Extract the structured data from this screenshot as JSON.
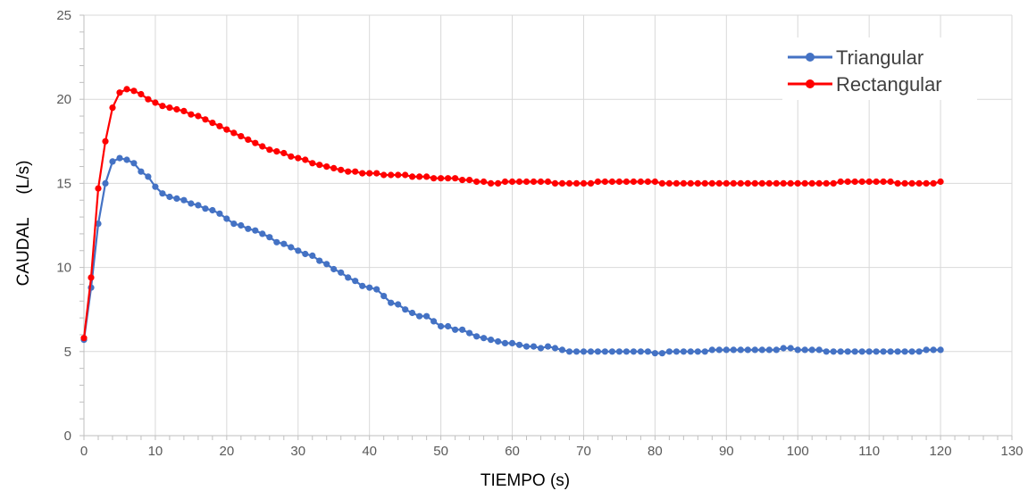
{
  "chart_data": {
    "type": "line",
    "xlabel": "TIEMPO (s)",
    "ylabel": "CAUDAL     (L/s)",
    "xlim": [
      0,
      130
    ],
    "ylim": [
      0,
      25
    ],
    "xticks": [
      "0",
      "10",
      "20",
      "30",
      "40",
      "50",
      "60",
      "70",
      "80",
      "90",
      "100",
      "110",
      "120",
      "130"
    ],
    "yticks": [
      "0",
      "5",
      "10",
      "15",
      "20",
      "25"
    ],
    "grid": "vertical",
    "legend_position": "top-right",
    "series": [
      {
        "name": "Triangular",
        "color": "#4472C4",
        "x": [
          0,
          1,
          2,
          3,
          4,
          5,
          6,
          7,
          8,
          9,
          10,
          11,
          12,
          13,
          14,
          15,
          16,
          17,
          18,
          19,
          20,
          21,
          22,
          23,
          24,
          25,
          26,
          27,
          28,
          29,
          30,
          31,
          32,
          33,
          34,
          35,
          36,
          37,
          38,
          39,
          40,
          41,
          42,
          43,
          44,
          45,
          46,
          47,
          48,
          49,
          50,
          51,
          52,
          53,
          54,
          55,
          56,
          57,
          58,
          59,
          60,
          61,
          62,
          63,
          64,
          65,
          66,
          67,
          68,
          69,
          70,
          71,
          72,
          73,
          74,
          75,
          76,
          77,
          78,
          79,
          80,
          81,
          82,
          83,
          84,
          85,
          86,
          87,
          88,
          89,
          90,
          91,
          92,
          93,
          94,
          95,
          96,
          97,
          98,
          99,
          100,
          101,
          102,
          103,
          104,
          105,
          106,
          107,
          108,
          109,
          110,
          111,
          112,
          113,
          114,
          115,
          116,
          117,
          118,
          119,
          120
        ],
        "y": [
          5.7,
          8.8,
          12.6,
          15.0,
          16.3,
          16.5,
          16.4,
          16.2,
          15.7,
          15.4,
          14.8,
          14.4,
          14.2,
          14.1,
          14.0,
          13.8,
          13.7,
          13.5,
          13.4,
          13.2,
          12.9,
          12.6,
          12.5,
          12.3,
          12.2,
          12.0,
          11.8,
          11.5,
          11.4,
          11.2,
          11.0,
          10.8,
          10.7,
          10.4,
          10.2,
          9.9,
          9.7,
          9.4,
          9.2,
          8.9,
          8.8,
          8.7,
          8.3,
          7.9,
          7.8,
          7.5,
          7.3,
          7.1,
          7.1,
          6.8,
          6.5,
          6.5,
          6.3,
          6.3,
          6.1,
          5.9,
          5.8,
          5.7,
          5.6,
          5.5,
          5.5,
          5.4,
          5.3,
          5.3,
          5.2,
          5.3,
          5.2,
          5.1,
          5.0,
          5.0,
          5.0,
          5.0,
          5.0,
          5.0,
          5.0,
          5.0,
          5.0,
          5.0,
          5.0,
          5.0,
          4.9,
          4.9,
          5.0,
          5.0,
          5.0,
          5.0,
          5.0,
          5.0,
          5.1,
          5.1,
          5.1,
          5.1,
          5.1,
          5.1,
          5.1,
          5.1,
          5.1,
          5.1,
          5.2,
          5.2,
          5.1,
          5.1,
          5.1,
          5.1,
          5.0,
          5.0,
          5.0,
          5.0,
          5.0,
          5.0,
          5.0,
          5.0,
          5.0,
          5.0,
          5.0,
          5.0,
          5.0,
          5.0,
          5.1,
          5.1,
          5.1
        ]
      },
      {
        "name": "Rectangular",
        "color": "#FF0000",
        "x": [
          0,
          1,
          2,
          3,
          4,
          5,
          6,
          7,
          8,
          9,
          10,
          11,
          12,
          13,
          14,
          15,
          16,
          17,
          18,
          19,
          20,
          21,
          22,
          23,
          24,
          25,
          26,
          27,
          28,
          29,
          30,
          31,
          32,
          33,
          34,
          35,
          36,
          37,
          38,
          39,
          40,
          41,
          42,
          43,
          44,
          45,
          46,
          47,
          48,
          49,
          50,
          51,
          52,
          53,
          54,
          55,
          56,
          57,
          58,
          59,
          60,
          61,
          62,
          63,
          64,
          65,
          66,
          67,
          68,
          69,
          70,
          71,
          72,
          73,
          74,
          75,
          76,
          77,
          78,
          79,
          80,
          81,
          82,
          83,
          84,
          85,
          86,
          87,
          88,
          89,
          90,
          91,
          92,
          93,
          94,
          95,
          96,
          97,
          98,
          99,
          100,
          101,
          102,
          103,
          104,
          105,
          106,
          107,
          108,
          109,
          110,
          111,
          112,
          113,
          114,
          115,
          116,
          117,
          118,
          119,
          120
        ],
        "y": [
          5.8,
          9.4,
          14.7,
          17.5,
          19.5,
          20.4,
          20.6,
          20.5,
          20.3,
          20.0,
          19.8,
          19.6,
          19.5,
          19.4,
          19.3,
          19.1,
          19.0,
          18.8,
          18.6,
          18.4,
          18.2,
          18.0,
          17.8,
          17.6,
          17.4,
          17.2,
          17.0,
          16.9,
          16.8,
          16.6,
          16.5,
          16.4,
          16.2,
          16.1,
          16.0,
          15.9,
          15.8,
          15.7,
          15.7,
          15.6,
          15.6,
          15.6,
          15.5,
          15.5,
          15.5,
          15.5,
          15.4,
          15.4,
          15.4,
          15.3,
          15.3,
          15.3,
          15.3,
          15.2,
          15.2,
          15.1,
          15.1,
          15.0,
          15.0,
          15.1,
          15.1,
          15.1,
          15.1,
          15.1,
          15.1,
          15.1,
          15.0,
          15.0,
          15.0,
          15.0,
          15.0,
          15.0,
          15.1,
          15.1,
          15.1,
          15.1,
          15.1,
          15.1,
          15.1,
          15.1,
          15.1,
          15.0,
          15.0,
          15.0,
          15.0,
          15.0,
          15.0,
          15.0,
          15.0,
          15.0,
          15.0,
          15.0,
          15.0,
          15.0,
          15.0,
          15.0,
          15.0,
          15.0,
          15.0,
          15.0,
          15.0,
          15.0,
          15.0,
          15.0,
          15.0,
          15.0,
          15.1,
          15.1,
          15.1,
          15.1,
          15.1,
          15.1,
          15.1,
          15.1,
          15.0,
          15.0,
          15.0,
          15.0,
          15.0,
          15.0,
          15.1
        ]
      }
    ]
  }
}
